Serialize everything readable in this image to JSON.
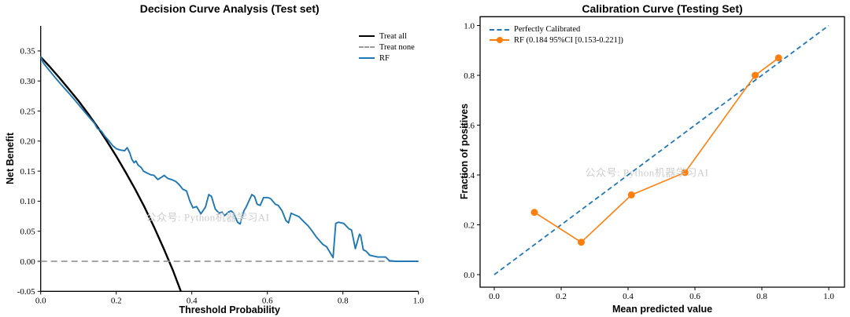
{
  "watermark": "公众号: Python机器学习AI",
  "colors": {
    "rf_blue": "#1f77b4",
    "orange": "#ff7f0e",
    "treat_all_black": "#000000",
    "treat_none_gray": "#999999",
    "watermark_gray": "#cccccc"
  },
  "chart_data": [
    {
      "type": "line",
      "title": "Decision Curve Analysis (Test set)",
      "xlabel": "Threshold Probability",
      "ylabel": "Net Benefit",
      "xlim": [
        0,
        1
      ],
      "ylim": [
        -0.05,
        0.392
      ],
      "grid": false,
      "legend_position": "upper right, no frame",
      "xticks": [
        0.0,
        0.2,
        0.4,
        0.6,
        0.8,
        1.0
      ],
      "xtick_labels": [
        "0.0",
        "0.2",
        "0.4",
        "0.6",
        "0.8",
        "1.0"
      ],
      "yticks": [
        -0.05,
        0.0,
        0.05,
        0.1,
        0.15,
        0.2,
        0.25,
        0.3,
        0.35
      ],
      "ytick_labels": [
        "-0.05",
        "0.00",
        "0.05",
        "0.10",
        "0.15",
        "0.20",
        "0.25",
        "0.30",
        "0.35"
      ],
      "series": [
        {
          "name": "Treat all",
          "color": "#000000",
          "style": "solid",
          "points": [
            [
              0,
              0.34
            ],
            [
              0.025,
              0.323
            ],
            [
              0.05,
              0.305
            ],
            [
              0.075,
              0.286
            ],
            [
              0.1,
              0.267
            ],
            [
              0.125,
              0.246
            ],
            [
              0.15,
              0.224
            ],
            [
              0.175,
              0.2
            ],
            [
              0.2,
              0.175
            ],
            [
              0.225,
              0.148
            ],
            [
              0.25,
              0.12
            ],
            [
              0.275,
              0.09
            ],
            [
              0.3,
              0.057
            ],
            [
              0.325,
              0.022
            ],
            [
              0.35,
              -0.015
            ],
            [
              0.371,
              -0.05
            ]
          ]
        },
        {
          "name": "Treat none",
          "color": "#999999",
          "style": "dashed",
          "points": [
            [
              0,
              0
            ],
            [
              1,
              0
            ]
          ]
        },
        {
          "name": "RF",
          "color": "#1f77b4",
          "style": "solid",
          "points": [
            [
              0.0,
              0.341
            ],
            [
              0.006,
              0.331
            ],
            [
              0.017,
              0.322
            ],
            [
              0.038,
              0.306
            ],
            [
              0.06,
              0.29
            ],
            [
              0.08,
              0.276
            ],
            [
              0.1,
              0.261
            ],
            [
              0.12,
              0.246
            ],
            [
              0.132,
              0.237
            ],
            [
              0.142,
              0.23
            ],
            [
              0.15,
              0.221
            ],
            [
              0.16,
              0.217
            ],
            [
              0.17,
              0.208
            ],
            [
              0.181,
              0.2
            ],
            [
              0.191,
              0.192
            ],
            [
              0.201,
              0.187
            ],
            [
              0.212,
              0.185
            ],
            [
              0.222,
              0.184
            ],
            [
              0.229,
              0.189
            ],
            [
              0.236,
              0.18
            ],
            [
              0.241,
              0.17
            ],
            [
              0.247,
              0.164
            ],
            [
              0.252,
              0.167
            ],
            [
              0.258,
              0.16
            ],
            [
              0.266,
              0.156
            ],
            [
              0.272,
              0.15
            ],
            [
              0.281,
              0.147
            ],
            [
              0.291,
              0.144
            ],
            [
              0.3,
              0.143
            ],
            [
              0.31,
              0.136
            ],
            [
              0.32,
              0.14
            ],
            [
              0.327,
              0.143
            ],
            [
              0.336,
              0.138
            ],
            [
              0.346,
              0.136
            ],
            [
              0.357,
              0.133
            ],
            [
              0.366,
              0.128
            ],
            [
              0.376,
              0.12
            ],
            [
              0.386,
              0.117
            ],
            [
              0.395,
              0.1
            ],
            [
              0.403,
              0.089
            ],
            [
              0.413,
              0.091
            ],
            [
              0.424,
              0.079
            ],
            [
              0.436,
              0.09
            ],
            [
              0.445,
              0.111
            ],
            [
              0.452,
              0.108
            ],
            [
              0.462,
              0.087
            ],
            [
              0.472,
              0.08
            ],
            [
              0.48,
              0.082
            ],
            [
              0.487,
              0.076
            ],
            [
              0.497,
              0.082
            ],
            [
              0.504,
              0.084
            ],
            [
              0.511,
              0.08
            ],
            [
              0.521,
              0.065
            ],
            [
              0.528,
              0.062
            ],
            [
              0.538,
              0.084
            ],
            [
              0.543,
              0.089
            ],
            [
              0.559,
              0.111
            ],
            [
              0.566,
              0.108
            ],
            [
              0.573,
              0.095
            ],
            [
              0.581,
              0.093
            ],
            [
              0.59,
              0.106
            ],
            [
              0.601,
              0.106
            ],
            [
              0.609,
              0.104
            ],
            [
              0.621,
              0.095
            ],
            [
              0.629,
              0.093
            ],
            [
              0.639,
              0.084
            ],
            [
              0.649,
              0.068
            ],
            [
              0.656,
              0.064
            ],
            [
              0.663,
              0.08
            ],
            [
              0.67,
              0.078
            ],
            [
              0.684,
              0.074
            ],
            [
              0.698,
              0.065
            ],
            [
              0.708,
              0.059
            ],
            [
              0.719,
              0.05
            ],
            [
              0.729,
              0.041
            ],
            [
              0.747,
              0.028
            ],
            [
              0.757,
              0.024
            ],
            [
              0.774,
              0.006
            ],
            [
              0.781,
              0.063
            ],
            [
              0.788,
              0.065
            ],
            [
              0.802,
              0.063
            ],
            [
              0.816,
              0.054
            ],
            [
              0.823,
              0.052
            ],
            [
              0.833,
              0.021
            ],
            [
              0.844,
              0.045
            ],
            [
              0.847,
              0.043
            ],
            [
              0.854,
              0.019
            ],
            [
              0.861,
              0.017
            ],
            [
              0.871,
              0.01
            ],
            [
              0.892,
              0.007
            ],
            [
              0.913,
              0.007
            ],
            [
              0.923,
              0.001
            ],
            [
              0.94,
              0.0
            ],
            [
              1.0,
              0.0
            ]
          ]
        }
      ]
    },
    {
      "type": "line",
      "title": "Calibration Curve (Testing Set)",
      "xlabel": "Mean predicted value",
      "ylabel": "Fraction of positives",
      "xlim": [
        -0.045,
        1.05
      ],
      "ylim": [
        -0.05,
        1.045
      ],
      "grid": false,
      "legend_position": "upper left, no frame",
      "xticks": [
        0.0,
        0.2,
        0.4,
        0.6,
        0.8,
        1.0
      ],
      "xtick_labels": [
        "0.0",
        "0.2",
        "0.4",
        "0.6",
        "0.8",
        "1.0"
      ],
      "yticks": [
        0.0,
        0.2,
        0.4,
        0.6,
        0.8,
        1.0
      ],
      "ytick_labels": [
        "0.0",
        "0.2",
        "0.4",
        "0.6",
        "0.8",
        "1.0"
      ],
      "series": [
        {
          "name": "Perfectly Calibrated",
          "color": "#1f77b4",
          "style": "dashed",
          "points": [
            [
              0,
              0
            ],
            [
              1,
              1
            ]
          ]
        },
        {
          "name": "RF (0.184 95%CI [0.153-0.221])",
          "color": "#ff7f0e",
          "style": "solid",
          "marker": "circle",
          "points": [
            [
              0.12,
              0.25
            ],
            [
              0.26,
              0.13
            ],
            [
              0.41,
              0.32
            ],
            [
              0.57,
              0.41
            ],
            [
              0.78,
              0.8
            ],
            [
              0.85,
              0.87
            ]
          ]
        }
      ]
    }
  ]
}
